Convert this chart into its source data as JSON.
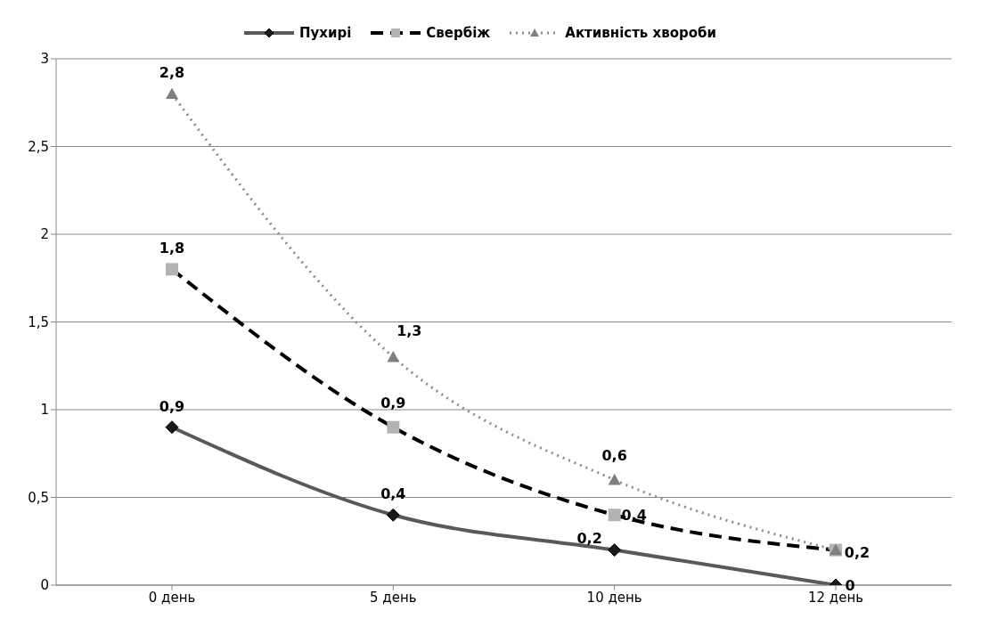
{
  "chart_data": {
    "type": "line",
    "categories": [
      "0 день",
      "5 день",
      "10 день",
      "12 день"
    ],
    "series": [
      {
        "name": "Пухирі",
        "color": "#595959",
        "marker": "diamond",
        "colors": [
          "#1a1a1a",
          "#1a1a1a",
          "#1a1a1a",
          "#1a1a1a"
        ],
        "line_style": "solid",
        "values": [
          0.9,
          0.4,
          0.2,
          0
        ],
        "value_labels": [
          "0,9",
          "0,4",
          "0,2",
          "0"
        ]
      },
      {
        "name": "Свербіж",
        "color": "#000000",
        "marker": "square",
        "colors": [
          "#b3b3b3",
          "#b3b3b3",
          "#b3b3b3",
          "#b3b3b3"
        ],
        "line_style": "dashed",
        "values": [
          1.8,
          0.9,
          0.4,
          0.2
        ],
        "value_labels": [
          "1,8",
          "0,9",
          "0,4",
          "0,2"
        ]
      },
      {
        "name": "Активність хвороби",
        "color": "#8c8c8c",
        "marker": "triangle",
        "colors": [
          "#808080",
          "#808080",
          "#808080",
          "#808080"
        ],
        "line_style": "dotted",
        "values": [
          2.8,
          1.3,
          0.6,
          0.2
        ],
        "value_labels": [
          "2,8",
          "1,3",
          "0,6",
          null
        ]
      }
    ],
    "ylim": [
      0,
      3
    ],
    "yticks": [
      0,
      {
        "value": 0.5,
        "label": "0,5"
      },
      1,
      {
        "value": 1.5,
        "label": "1,5"
      },
      2,
      {
        "value": 2.5,
        "label": "2,5"
      },
      3
    ],
    "grid": "y",
    "legend": "top"
  }
}
